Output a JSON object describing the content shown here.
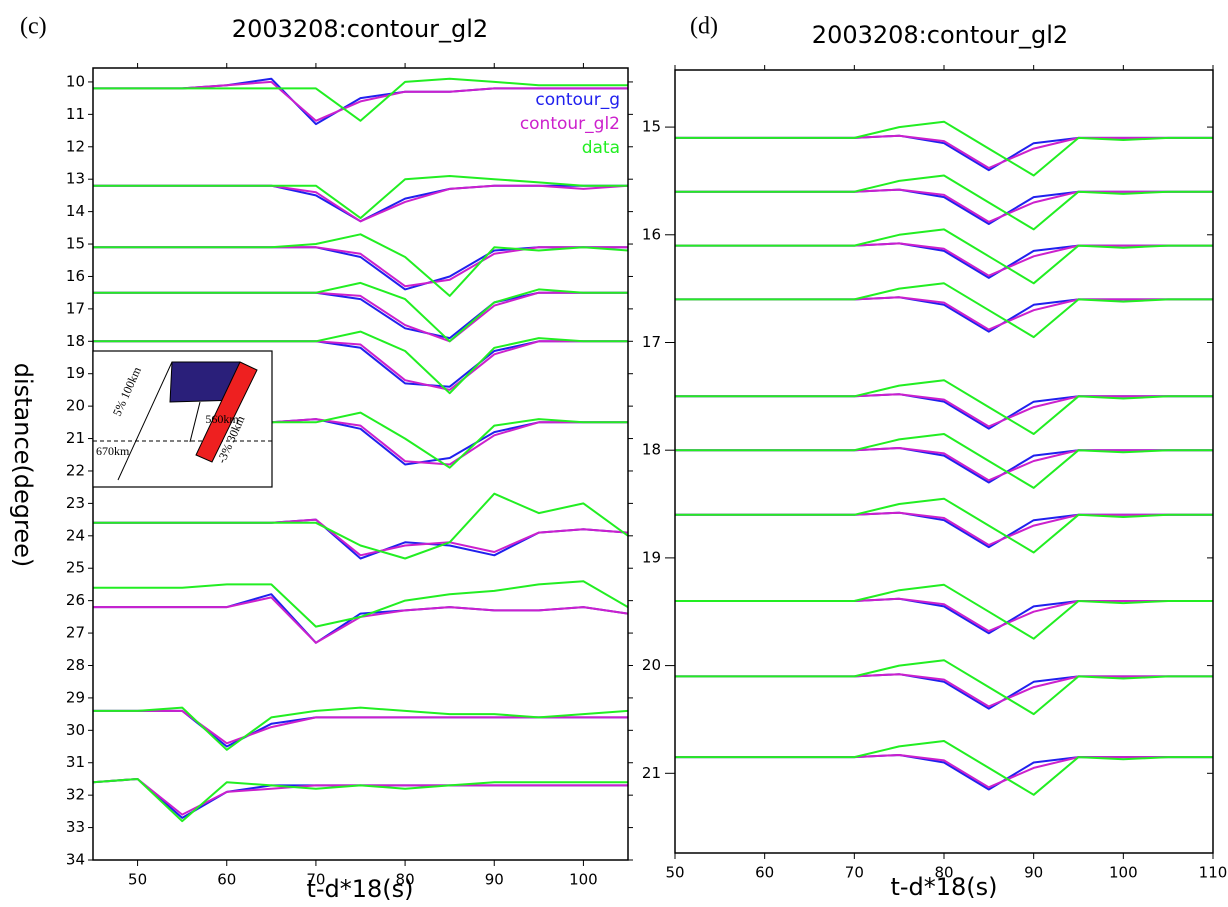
{
  "chart_data": [
    {
      "type": "line",
      "panel_label": "(c)",
      "title": "2003208:contour_gl2",
      "xlabel": "t-d*18(s)",
      "ylabel": "distance(degree)",
      "xlim": [
        45,
        105
      ],
      "ylim": [
        9.57,
        34
      ],
      "y_inverted": true,
      "xticks": [
        50,
        60,
        70,
        80,
        90,
        100
      ],
      "yticks": [
        10,
        11,
        12,
        13,
        14,
        15,
        16,
        17,
        18,
        19,
        20,
        21,
        22,
        23,
        24,
        25,
        26,
        27,
        28,
        29,
        30,
        31,
        32,
        33,
        34
      ],
      "legend": "upper right",
      "inset": {
        "labels": [
          "5% 100km",
          "560km",
          "670km",
          "-3% 30km"
        ]
      },
      "x": [
        45,
        50,
        55,
        60,
        65,
        70,
        75,
        80,
        85,
        90,
        95,
        100,
        105
      ],
      "series": [
        {
          "name": "contour_g",
          "color": "#2020ee",
          "traces": [
            [
              10.2,
              10.2,
              10.2,
              10.1,
              9.9,
              11.3,
              10.5,
              10.3,
              10.3,
              10.2,
              10.2,
              10.2,
              10.2
            ],
            [
              13.2,
              13.2,
              13.2,
              13.2,
              13.2,
              13.5,
              14.3,
              13.6,
              13.3,
              13.2,
              13.2,
              13.2,
              13.2
            ],
            [
              15.1,
              15.1,
              15.1,
              15.1,
              15.1,
              15.1,
              15.4,
              16.4,
              16.0,
              15.2,
              15.1,
              15.1,
              15.1
            ],
            [
              16.5,
              16.5,
              16.5,
              16.5,
              16.5,
              16.5,
              16.7,
              17.6,
              17.9,
              16.8,
              16.5,
              16.5,
              16.5
            ],
            [
              18.0,
              18.0,
              18.0,
              18.0,
              18.0,
              18.0,
              18.2,
              19.3,
              19.4,
              18.3,
              18.0,
              18.0,
              18.0
            ],
            [
              20.5,
              20.5,
              20.5,
              20.5,
              20.5,
              20.4,
              20.7,
              21.8,
              21.6,
              20.8,
              20.5,
              20.5,
              20.5
            ],
            [
              23.6,
              23.6,
              23.6,
              23.6,
              23.6,
              23.5,
              24.7,
              24.2,
              24.3,
              24.6,
              23.9,
              23.8,
              23.9
            ],
            [
              26.2,
              26.2,
              26.2,
              26.2,
              25.8,
              27.3,
              26.4,
              26.3,
              26.2,
              26.3,
              26.3,
              26.2,
              26.4
            ],
            [
              29.4,
              29.4,
              29.4,
              30.5,
              29.8,
              29.6,
              29.6,
              29.6,
              29.6,
              29.6,
              29.6,
              29.6,
              29.6
            ],
            [
              31.6,
              31.5,
              32.7,
              31.9,
              31.7,
              31.7,
              31.7,
              31.7,
              31.7,
              31.7,
              31.7,
              31.7,
              31.7
            ]
          ]
        },
        {
          "name": "contour_gl2",
          "color": "#cc20cc",
          "traces": [
            [
              10.2,
              10.2,
              10.2,
              10.1,
              10.0,
              11.2,
              10.6,
              10.3,
              10.3,
              10.2,
              10.2,
              10.2,
              10.2
            ],
            [
              13.2,
              13.2,
              13.2,
              13.2,
              13.2,
              13.4,
              14.3,
              13.7,
              13.3,
              13.2,
              13.2,
              13.3,
              13.2
            ],
            [
              15.1,
              15.1,
              15.1,
              15.1,
              15.1,
              15.1,
              15.3,
              16.3,
              16.1,
              15.3,
              15.1,
              15.1,
              15.1
            ],
            [
              16.5,
              16.5,
              16.5,
              16.5,
              16.5,
              16.5,
              16.6,
              17.5,
              18.0,
              16.9,
              16.5,
              16.5,
              16.5
            ],
            [
              18.0,
              18.0,
              18.0,
              18.0,
              18.0,
              18.0,
              18.1,
              19.2,
              19.5,
              18.4,
              18.0,
              18.0,
              18.0
            ],
            [
              20.5,
              20.5,
              20.5,
              20.5,
              20.5,
              20.4,
              20.6,
              21.7,
              21.8,
              20.9,
              20.5,
              20.5,
              20.5
            ],
            [
              23.6,
              23.6,
              23.6,
              23.6,
              23.6,
              23.5,
              24.6,
              24.3,
              24.2,
              24.5,
              23.9,
              23.8,
              23.9
            ],
            [
              26.2,
              26.2,
              26.2,
              26.2,
              25.9,
              27.3,
              26.5,
              26.3,
              26.2,
              26.3,
              26.3,
              26.2,
              26.4
            ],
            [
              29.4,
              29.4,
              29.4,
              30.4,
              29.9,
              29.6,
              29.6,
              29.6,
              29.6,
              29.6,
              29.6,
              29.6,
              29.6
            ],
            [
              31.6,
              31.5,
              32.6,
              31.9,
              31.8,
              31.7,
              31.7,
              31.7,
              31.7,
              31.7,
              31.7,
              31.7,
              31.7
            ]
          ]
        },
        {
          "name": "data",
          "color": "#22ee22",
          "traces": [
            [
              10.2,
              10.2,
              10.2,
              10.2,
              10.2,
              10.2,
              11.2,
              10.0,
              9.9,
              10.0,
              10.1,
              10.1,
              10.1
            ],
            [
              13.2,
              13.2,
              13.2,
              13.2,
              13.2,
              13.2,
              14.2,
              13.0,
              12.9,
              13.0,
              13.1,
              13.2,
              13.2
            ],
            [
              15.1,
              15.1,
              15.1,
              15.1,
              15.1,
              15.0,
              14.7,
              15.4,
              16.6,
              15.1,
              15.2,
              15.1,
              15.2
            ],
            [
              16.5,
              16.5,
              16.5,
              16.5,
              16.5,
              16.5,
              16.2,
              16.7,
              18.0,
              16.8,
              16.4,
              16.5,
              16.5
            ],
            [
              18.0,
              18.0,
              18.0,
              18.0,
              18.0,
              18.0,
              17.7,
              18.3,
              19.6,
              18.2,
              17.9,
              18.0,
              18.0
            ],
            [
              20.5,
              20.5,
              20.5,
              20.5,
              20.5,
              20.5,
              20.2,
              21.0,
              21.9,
              20.6,
              20.4,
              20.5,
              20.5
            ],
            [
              23.6,
              23.6,
              23.6,
              23.6,
              23.6,
              23.6,
              24.3,
              24.7,
              24.2,
              22.7,
              23.3,
              23.0,
              24.0
            ],
            [
              25.6,
              25.6,
              25.6,
              25.5,
              25.5,
              26.8,
              26.5,
              26.0,
              25.8,
              25.7,
              25.5,
              25.4,
              26.2
            ],
            [
              29.4,
              29.4,
              29.3,
              30.6,
              29.6,
              29.4,
              29.3,
              29.4,
              29.5,
              29.5,
              29.6,
              29.5,
              29.4
            ],
            [
              31.6,
              31.5,
              32.8,
              31.6,
              31.7,
              31.8,
              31.7,
              31.8,
              31.7,
              31.6,
              31.6,
              31.6,
              31.6
            ]
          ]
        }
      ]
    },
    {
      "type": "line",
      "panel_label": "(d)",
      "title": "2003208:contour_gl2",
      "xlabel": "t-d*18(s)",
      "xlim": [
        50,
        110
      ],
      "ylim": [
        14.47,
        21.74
      ],
      "y_inverted": true,
      "xticks": [
        50,
        60,
        70,
        80,
        90,
        100,
        110
      ],
      "yticks": [
        15,
        16,
        17,
        18,
        19,
        20,
        21
      ],
      "x": [
        50,
        55,
        60,
        65,
        70,
        75,
        80,
        85,
        90,
        95,
        100,
        105,
        110
      ],
      "series": [
        {
          "color": "#2020ee",
          "traces": [
            [
              15.1,
              15.1,
              15.1,
              15.1,
              15.1,
              15.08,
              15.15,
              15.4,
              15.15,
              15.1,
              15.1,
              15.1,
              15.1
            ],
            [
              15.6,
              15.6,
              15.6,
              15.6,
              15.6,
              15.58,
              15.65,
              15.9,
              15.65,
              15.6,
              15.6,
              15.6,
              15.6
            ],
            [
              16.1,
              16.1,
              16.1,
              16.1,
              16.1,
              16.08,
              16.15,
              16.4,
              16.15,
              16.1,
              16.1,
              16.1,
              16.1
            ],
            [
              16.6,
              16.6,
              16.6,
              16.6,
              16.6,
              16.58,
              16.65,
              16.9,
              16.65,
              16.6,
              16.6,
              16.6,
              16.6
            ],
            [
              17.5,
              17.5,
              17.5,
              17.5,
              17.5,
              17.48,
              17.55,
              17.8,
              17.55,
              17.5,
              17.5,
              17.5,
              17.5
            ],
            [
              18.0,
              18.0,
              18.0,
              18.0,
              18.0,
              17.98,
              18.05,
              18.3,
              18.05,
              18.0,
              18.0,
              18.0,
              18.0
            ],
            [
              18.6,
              18.6,
              18.6,
              18.6,
              18.6,
              18.58,
              18.65,
              18.9,
              18.65,
              18.6,
              18.6,
              18.6,
              18.6
            ],
            [
              19.4,
              19.4,
              19.4,
              19.4,
              19.4,
              19.38,
              19.45,
              19.7,
              19.45,
              19.4,
              19.4,
              19.4,
              19.4
            ],
            [
              20.1,
              20.1,
              20.1,
              20.1,
              20.1,
              20.08,
              20.15,
              20.4,
              20.15,
              20.1,
              20.1,
              20.1,
              20.1
            ],
            [
              20.85,
              20.85,
              20.85,
              20.85,
              20.85,
              20.83,
              20.9,
              21.15,
              20.9,
              20.85,
              20.85,
              20.85,
              20.85
            ]
          ]
        },
        {
          "color": "#cc20cc",
          "traces": [
            [
              15.1,
              15.1,
              15.1,
              15.1,
              15.1,
              15.08,
              15.13,
              15.38,
              15.2,
              15.1,
              15.1,
              15.1,
              15.1
            ],
            [
              15.6,
              15.6,
              15.6,
              15.6,
              15.6,
              15.58,
              15.63,
              15.88,
              15.7,
              15.6,
              15.6,
              15.6,
              15.6
            ],
            [
              16.1,
              16.1,
              16.1,
              16.1,
              16.1,
              16.08,
              16.13,
              16.38,
              16.2,
              16.1,
              16.1,
              16.1,
              16.1
            ],
            [
              16.6,
              16.6,
              16.6,
              16.6,
              16.6,
              16.58,
              16.63,
              16.88,
              16.7,
              16.6,
              16.6,
              16.6,
              16.6
            ],
            [
              17.5,
              17.5,
              17.5,
              17.5,
              17.5,
              17.48,
              17.53,
              17.78,
              17.6,
              17.5,
              17.5,
              17.5,
              17.5
            ],
            [
              18.0,
              18.0,
              18.0,
              18.0,
              18.0,
              17.98,
              18.03,
              18.28,
              18.1,
              18.0,
              18.0,
              18.0,
              18.0
            ],
            [
              18.6,
              18.6,
              18.6,
              18.6,
              18.6,
              18.58,
              18.63,
              18.88,
              18.7,
              18.6,
              18.6,
              18.6,
              18.6
            ],
            [
              19.4,
              19.4,
              19.4,
              19.4,
              19.4,
              19.38,
              19.43,
              19.68,
              19.5,
              19.4,
              19.4,
              19.4,
              19.4
            ],
            [
              20.1,
              20.1,
              20.1,
              20.1,
              20.1,
              20.08,
              20.13,
              20.38,
              20.2,
              20.1,
              20.1,
              20.1,
              20.1
            ],
            [
              20.85,
              20.85,
              20.85,
              20.85,
              20.85,
              20.83,
              20.88,
              21.13,
              20.95,
              20.85,
              20.85,
              20.85,
              20.85
            ]
          ]
        },
        {
          "color": "#22ee22",
          "traces": [
            [
              15.1,
              15.1,
              15.1,
              15.1,
              15.1,
              15.0,
              14.95,
              15.2,
              15.45,
              15.1,
              15.12,
              15.1,
              15.1
            ],
            [
              15.6,
              15.6,
              15.6,
              15.6,
              15.6,
              15.5,
              15.45,
              15.7,
              15.95,
              15.6,
              15.62,
              15.6,
              15.6
            ],
            [
              16.1,
              16.1,
              16.1,
              16.1,
              16.1,
              16.0,
              15.95,
              16.2,
              16.45,
              16.1,
              16.12,
              16.1,
              16.1
            ],
            [
              16.6,
              16.6,
              16.6,
              16.6,
              16.6,
              16.5,
              16.45,
              16.7,
              16.95,
              16.6,
              16.62,
              16.6,
              16.6
            ],
            [
              17.5,
              17.5,
              17.5,
              17.5,
              17.5,
              17.4,
              17.35,
              17.6,
              17.85,
              17.5,
              17.52,
              17.5,
              17.5
            ],
            [
              18.0,
              18.0,
              18.0,
              18.0,
              18.0,
              17.9,
              17.85,
              18.1,
              18.35,
              18.0,
              18.02,
              18.0,
              18.0
            ],
            [
              18.6,
              18.6,
              18.6,
              18.6,
              18.6,
              18.5,
              18.45,
              18.7,
              18.95,
              18.6,
              18.62,
              18.6,
              18.6
            ],
            [
              19.4,
              19.4,
              19.4,
              19.4,
              19.4,
              19.3,
              19.25,
              19.5,
              19.75,
              19.4,
              19.42,
              19.4,
              19.4
            ],
            [
              20.1,
              20.1,
              20.1,
              20.1,
              20.1,
              20.0,
              19.95,
              20.2,
              20.45,
              20.1,
              20.12,
              20.1,
              20.1
            ],
            [
              20.85,
              20.85,
              20.85,
              20.85,
              20.85,
              20.75,
              20.7,
              20.95,
              21.2,
              20.85,
              20.87,
              20.85,
              20.85
            ]
          ]
        }
      ]
    }
  ]
}
